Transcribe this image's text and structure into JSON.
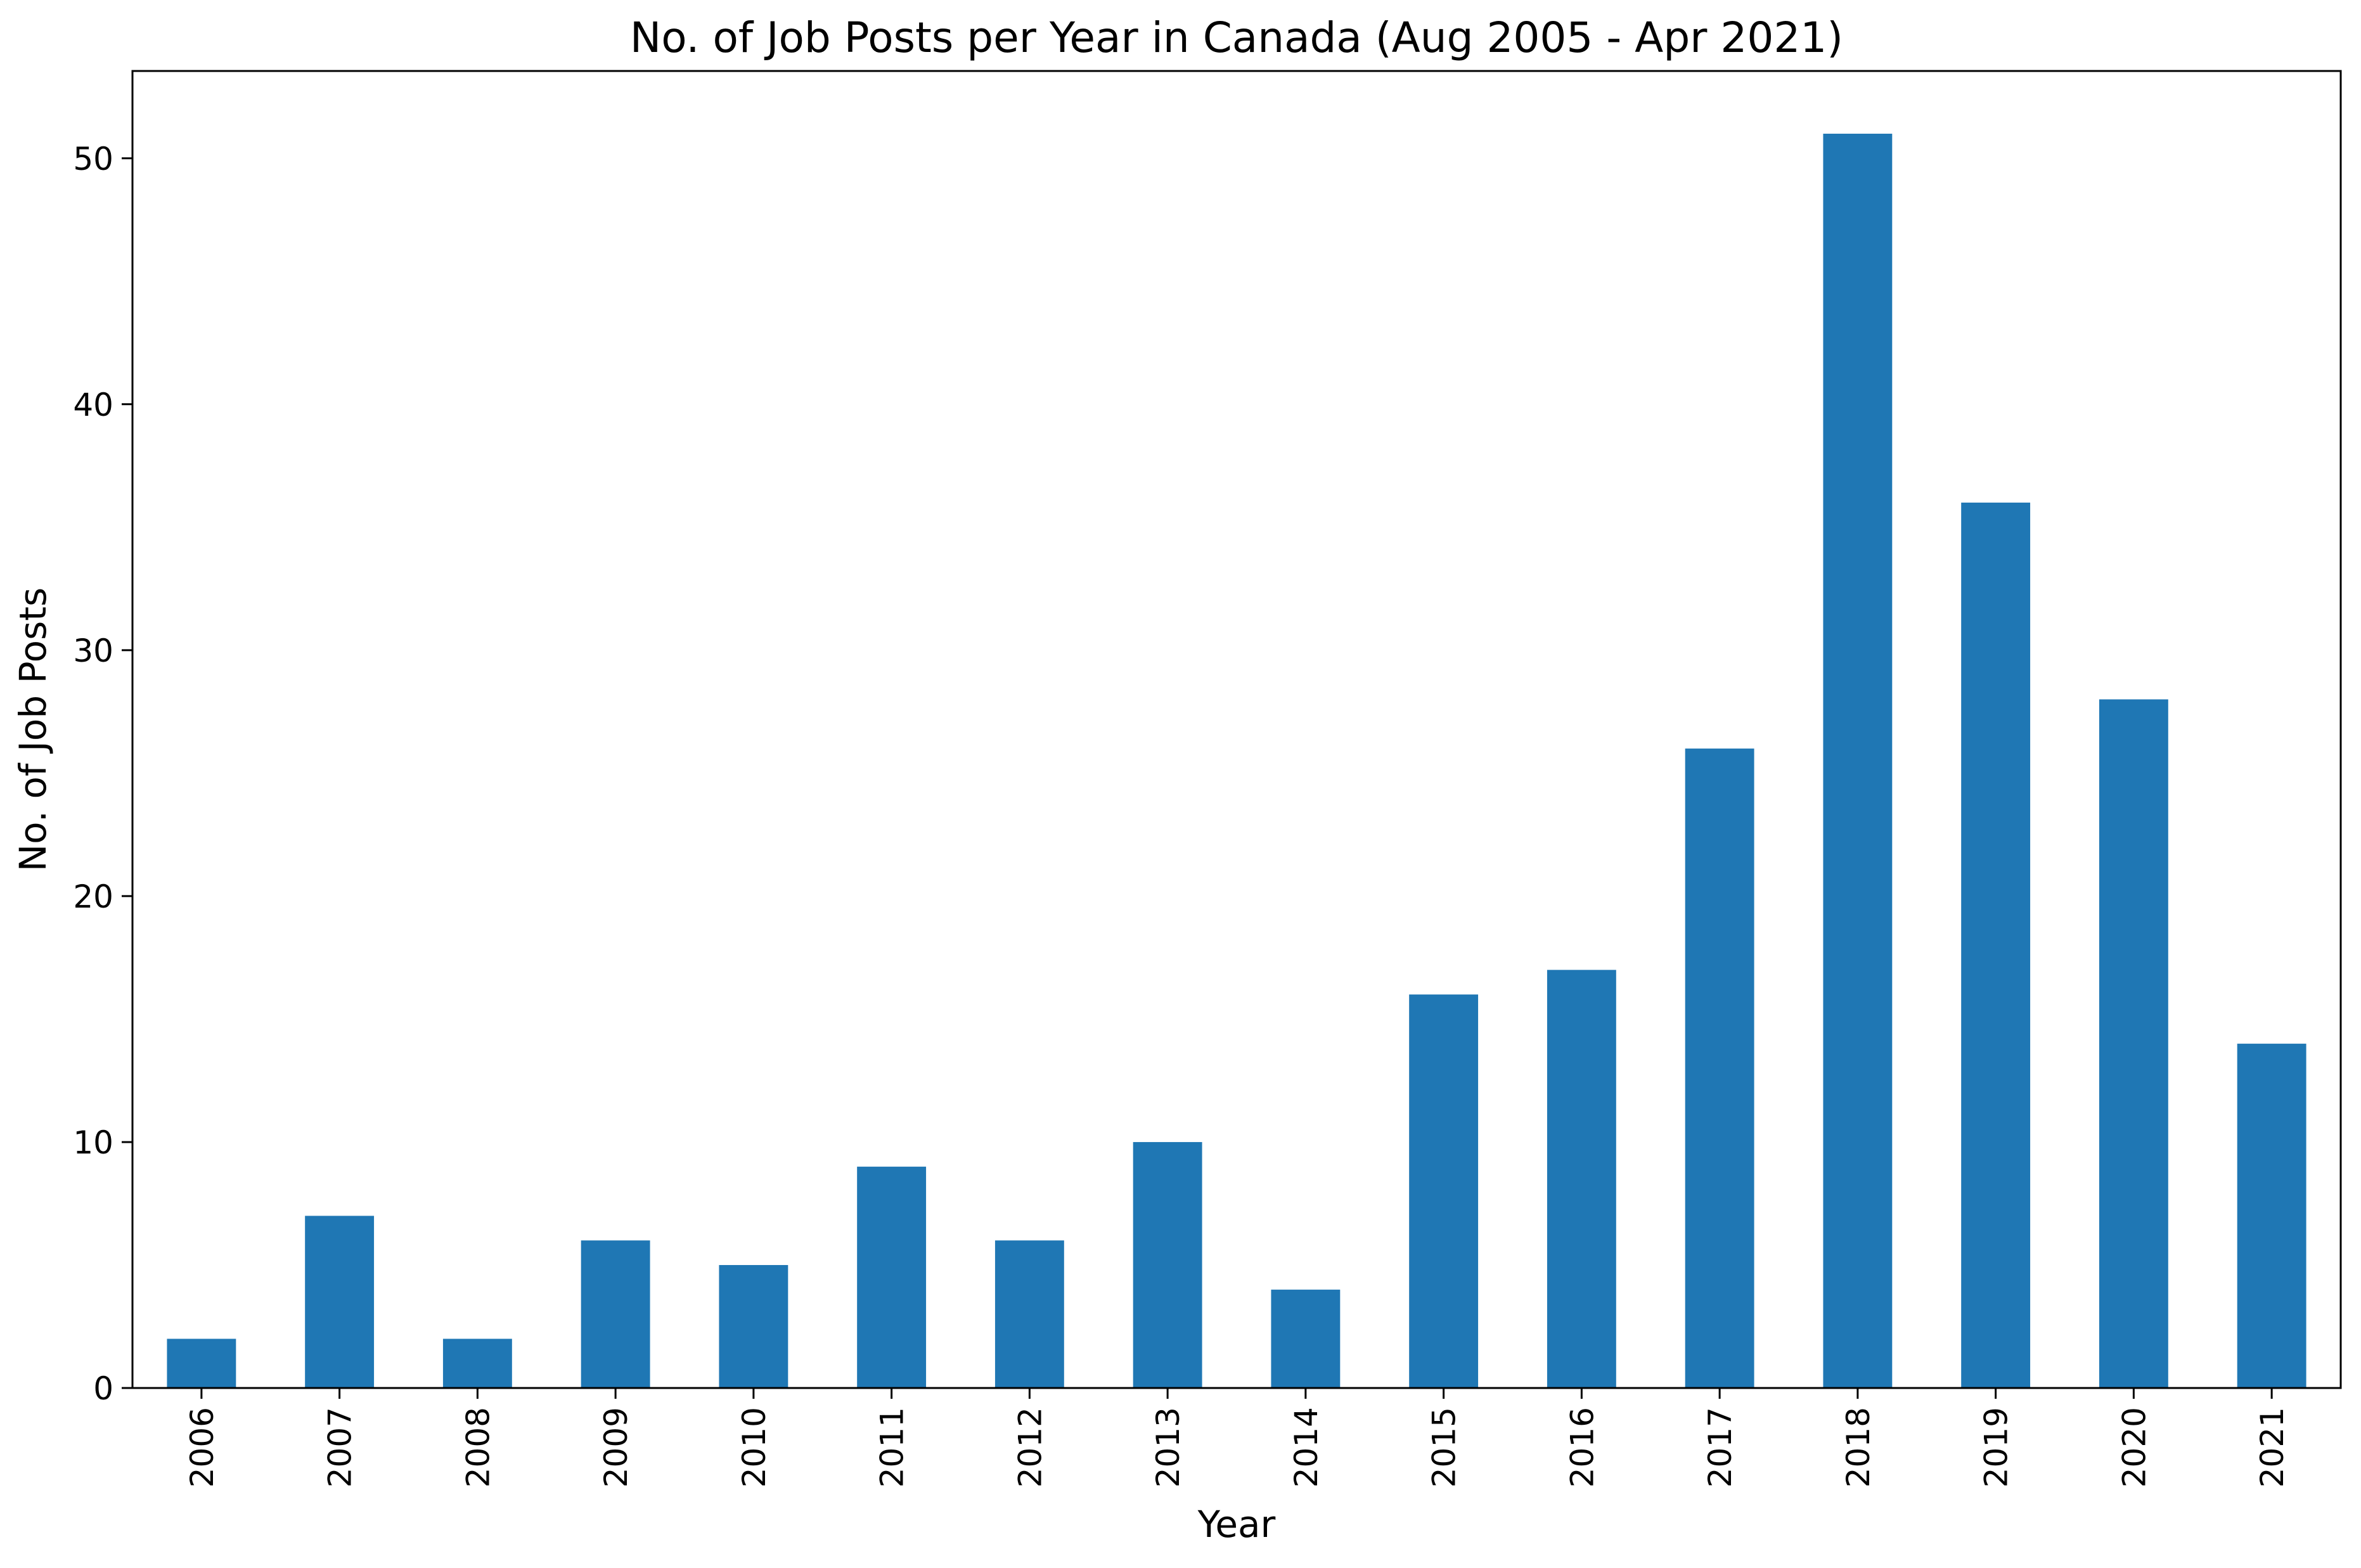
{
  "colors": {
    "bar": "#1f77b4",
    "axis": "#000000",
    "background": "#ffffff"
  },
  "chart_data": {
    "type": "bar",
    "title": "No. of Job Posts per Year in Canada (Aug 2005 - Apr 2021)",
    "xlabel": "Year",
    "ylabel": "No. of Job Posts",
    "categories": [
      "2006",
      "2007",
      "2008",
      "2009",
      "2010",
      "2011",
      "2012",
      "2013",
      "2014",
      "2015",
      "2016",
      "2017",
      "2018",
      "2019",
      "2020",
      "2021"
    ],
    "values": [
      2,
      7,
      2,
      6,
      5,
      9,
      6,
      10,
      4,
      16,
      17,
      26,
      51,
      36,
      28,
      14
    ],
    "ylim": [
      0,
      53.55
    ],
    "yticks": [
      0,
      10,
      20,
      30,
      40,
      50
    ],
    "grid": false,
    "legend": "none"
  }
}
